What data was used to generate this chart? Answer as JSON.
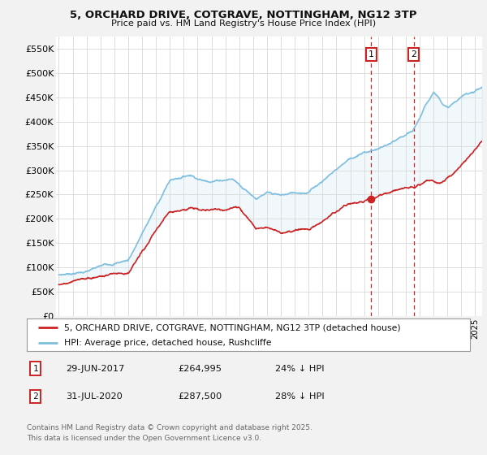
{
  "title_line1": "5, ORCHARD DRIVE, COTGRAVE, NOTTINGHAM, NG12 3TP",
  "title_line2": "Price paid vs. HM Land Registry's House Price Index (HPI)",
  "yticks": [
    0,
    50000,
    100000,
    150000,
    200000,
    250000,
    300000,
    350000,
    400000,
    450000,
    500000,
    550000
  ],
  "ytick_labels": [
    "£0",
    "£50K",
    "£100K",
    "£150K",
    "£200K",
    "£250K",
    "£300K",
    "£350K",
    "£400K",
    "£450K",
    "£500K",
    "£550K"
  ],
  "ylim": [
    0,
    575000
  ],
  "xlim_start": 1994.8,
  "xlim_end": 2025.5,
  "hpi_color": "#7fbfdf",
  "hpi_fill_color": "#c8e4f4",
  "price_color": "#cc2222",
  "marker1_date": 2017.49,
  "marker1_price": 264995,
  "marker1_label": "29-JUN-2017",
  "marker1_pct": "24% ↓ HPI",
  "marker2_date": 2020.57,
  "marker2_price": 287500,
  "marker2_label": "31-JUL-2020",
  "marker2_pct": "28% ↓ HPI",
  "legend_line1": "5, ORCHARD DRIVE, COTGRAVE, NOTTINGHAM, NG12 3TP (detached house)",
  "legend_line2": "HPI: Average price, detached house, Rushcliffe",
  "footer_line1": "Contains HM Land Registry data © Crown copyright and database right 2025.",
  "footer_line2": "This data is licensed under the Open Government Licence v3.0.",
  "background_color": "#f2f2f2",
  "plot_bg_color": "#ffffff"
}
